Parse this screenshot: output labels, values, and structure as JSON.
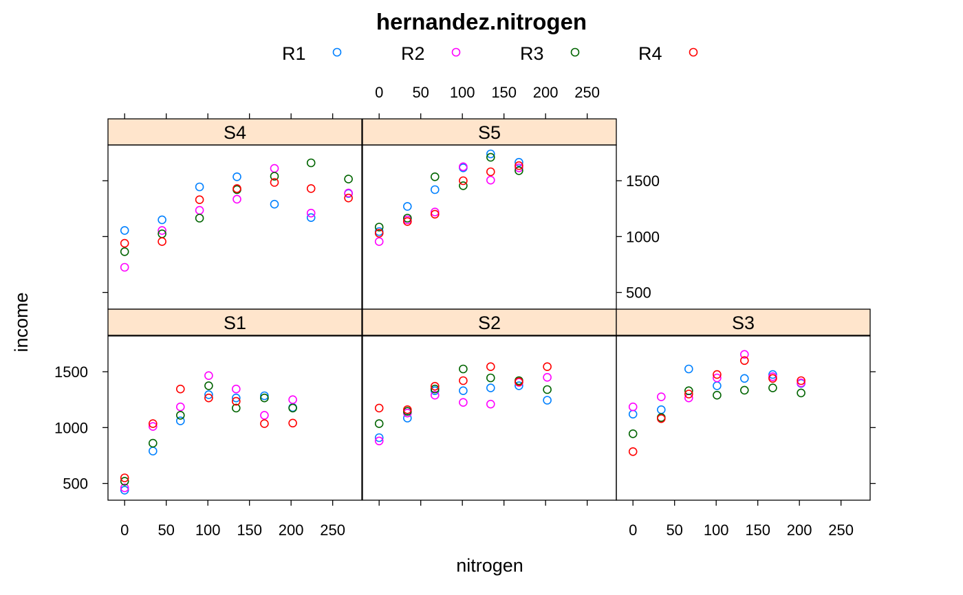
{
  "chart_data": {
    "type": "scatter",
    "title": "hernandez.nitrogen",
    "xlabel": "nitrogen",
    "ylabel": "income",
    "xlim": [
      -20,
      285
    ],
    "ylim": [
      350,
      1820
    ],
    "x_ticks": [
      0,
      50,
      100,
      150,
      200,
      250
    ],
    "y_ticks": [
      500,
      1000,
      1500
    ],
    "legend": {
      "position": "top",
      "entries": [
        {
          "name": "R1",
          "color": "#0080ff"
        },
        {
          "name": "R2",
          "color": "#ff00ff"
        },
        {
          "name": "R3",
          "color": "#006400"
        },
        {
          "name": "R4",
          "color": "#ff0000"
        }
      ]
    },
    "panels": [
      {
        "name": "S4",
        "series": [
          {
            "name": "R1",
            "points": [
              [
                0,
                1055
              ],
              [
                45,
                1150
              ],
              [
                90,
                1445
              ],
              [
                135,
                1535
              ],
              [
                180,
                1290
              ],
              [
                224,
                1170
              ],
              [
                269,
                1385
              ]
            ]
          },
          {
            "name": "R2",
            "points": [
              [
                0,
                725
              ],
              [
                45,
                1055
              ],
              [
                90,
                1235
              ],
              [
                135,
                1335
              ],
              [
                180,
                1610
              ],
              [
                224,
                1210
              ],
              [
                269,
                1390
              ]
            ]
          },
          {
            "name": "R3",
            "points": [
              [
                0,
                865
              ],
              [
                45,
                1025
              ],
              [
                90,
                1165
              ],
              [
                135,
                1420
              ],
              [
                180,
                1540
              ],
              [
                224,
                1660
              ],
              [
                269,
                1515
              ]
            ]
          },
          {
            "name": "R4",
            "points": [
              [
                0,
                940
              ],
              [
                45,
                955
              ],
              [
                90,
                1330
              ],
              [
                135,
                1430
              ],
              [
                180,
                1485
              ],
              [
                224,
                1430
              ],
              [
                269,
                1345
              ]
            ]
          }
        ]
      },
      {
        "name": "S5",
        "series": [
          {
            "name": "R1",
            "points": [
              [
                0,
                1045
              ],
              [
                34,
                1270
              ],
              [
                67,
                1420
              ],
              [
                101,
                1615
              ],
              [
                134,
                1740
              ],
              [
                168,
                1665
              ]
            ]
          },
          {
            "name": "R2",
            "points": [
              [
                0,
                955
              ],
              [
                34,
                1150
              ],
              [
                67,
                1220
              ],
              [
                101,
                1625
              ],
              [
                134,
                1505
              ],
              [
                168,
                1615
              ]
            ]
          },
          {
            "name": "R3",
            "points": [
              [
                0,
                1085
              ],
              [
                34,
                1165
              ],
              [
                67,
                1535
              ],
              [
                101,
                1455
              ],
              [
                134,
                1710
              ],
              [
                168,
                1590
              ]
            ]
          },
          {
            "name": "R4",
            "points": [
              [
                0,
                1030
              ],
              [
                34,
                1135
              ],
              [
                67,
                1200
              ],
              [
                101,
                1500
              ],
              [
                134,
                1580
              ],
              [
                168,
                1635
              ]
            ]
          }
        ]
      },
      {
        "name": "S1",
        "series": [
          {
            "name": "R1",
            "points": [
              [
                0,
                440
              ],
              [
                34,
                790
              ],
              [
                67,
                1060
              ],
              [
                101,
                1295
              ],
              [
                134,
                1265
              ],
              [
                168,
                1285
              ],
              [
                202,
                1180
              ]
            ]
          },
          {
            "name": "R2",
            "points": [
              [
                0,
                460
              ],
              [
                34,
                1010
              ],
              [
                67,
                1185
              ],
              [
                101,
                1465
              ],
              [
                134,
                1345
              ],
              [
                168,
                1110
              ],
              [
                202,
                1250
              ]
            ]
          },
          {
            "name": "R3",
            "points": [
              [
                0,
                520
              ],
              [
                34,
                860
              ],
              [
                67,
                1110
              ],
              [
                101,
                1375
              ],
              [
                134,
                1175
              ],
              [
                168,
                1265
              ],
              [
                202,
                1175
              ]
            ]
          },
          {
            "name": "R4",
            "points": [
              [
                0,
                550
              ],
              [
                34,
                1035
              ],
              [
                67,
                1345
              ],
              [
                101,
                1265
              ],
              [
                134,
                1235
              ],
              [
                168,
                1035
              ],
              [
                202,
                1040
              ]
            ]
          }
        ]
      },
      {
        "name": "S2",
        "series": [
          {
            "name": "R1",
            "points": [
              [
                0,
                910
              ],
              [
                34,
                1085
              ],
              [
                67,
                1330
              ],
              [
                101,
                1330
              ],
              [
                134,
                1355
              ],
              [
                168,
                1375
              ],
              [
                202,
                1245
              ]
            ]
          },
          {
            "name": "R2",
            "points": [
              [
                0,
                880
              ],
              [
                34,
                1130
              ],
              [
                67,
                1290
              ],
              [
                101,
                1225
              ],
              [
                134,
                1210
              ],
              [
                168,
                1405
              ],
              [
                202,
                1450
              ]
            ]
          },
          {
            "name": "R3",
            "points": [
              [
                0,
                1035
              ],
              [
                34,
                1145
              ],
              [
                67,
                1345
              ],
              [
                101,
                1525
              ],
              [
                134,
                1445
              ],
              [
                168,
                1420
              ],
              [
                202,
                1340
              ]
            ]
          },
          {
            "name": "R4",
            "points": [
              [
                0,
                1175
              ],
              [
                34,
                1160
              ],
              [
                67,
                1370
              ],
              [
                101,
                1420
              ],
              [
                134,
                1545
              ],
              [
                168,
                1410
              ],
              [
                202,
                1545
              ]
            ]
          }
        ]
      },
      {
        "name": "S3",
        "series": [
          {
            "name": "R1",
            "points": [
              [
                0,
                1120
              ],
              [
                34,
                1160
              ],
              [
                67,
                1525
              ],
              [
                101,
                1375
              ],
              [
                134,
                1440
              ],
              [
                168,
                1475
              ],
              [
                202,
                1395
              ]
            ]
          },
          {
            "name": "R2",
            "points": [
              [
                0,
                1185
              ],
              [
                34,
                1275
              ],
              [
                67,
                1265
              ],
              [
                101,
                1445
              ],
              [
                134,
                1655
              ],
              [
                168,
                1455
              ],
              [
                202,
                1400
              ]
            ]
          },
          {
            "name": "R3",
            "points": [
              [
                0,
                945
              ],
              [
                34,
                1090
              ],
              [
                67,
                1330
              ],
              [
                101,
                1290
              ],
              [
                134,
                1335
              ],
              [
                168,
                1355
              ],
              [
                202,
                1310
              ]
            ]
          },
          {
            "name": "R4",
            "points": [
              [
                0,
                785
              ],
              [
                34,
                1080
              ],
              [
                67,
                1300
              ],
              [
                101,
                1475
              ],
              [
                134,
                1600
              ],
              [
                168,
                1440
              ],
              [
                202,
                1420
              ]
            ]
          }
        ]
      }
    ]
  }
}
